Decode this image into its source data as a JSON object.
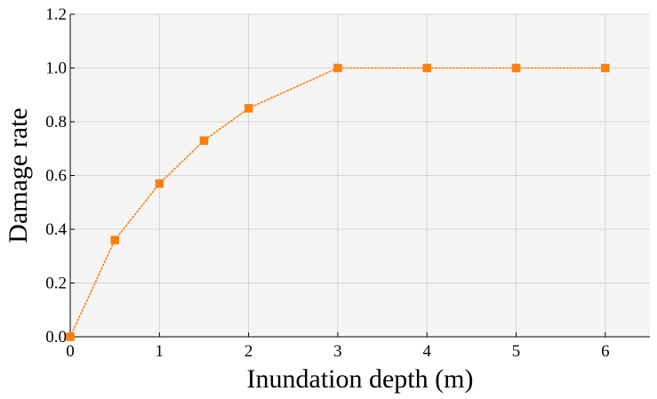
{
  "chart_data": {
    "type": "line",
    "title": "",
    "xlabel": "Inundation depth (m)",
    "ylabel": "Damage rate",
    "xlim": [
      0,
      6.5
    ],
    "ylim": [
      0,
      1.2
    ],
    "x_ticks": [
      0,
      1,
      2,
      3,
      4,
      5,
      6
    ],
    "x_tick_labels": [
      "0",
      "1",
      "2",
      "3",
      "4",
      "5",
      "6"
    ],
    "y_ticks": [
      0,
      0.2,
      0.4,
      0.6,
      0.8,
      1.0,
      1.2
    ],
    "y_tick_labels": [
      "0.0",
      "0.2",
      "0.4",
      "0.6",
      "0.8",
      "1.0",
      "1.2"
    ],
    "grid": true,
    "legend": "none",
    "series": [
      {
        "x": [
          0,
          0.5,
          1,
          1.5,
          2,
          3,
          4,
          5,
          6
        ],
        "y": [
          0,
          0.36,
          0.57,
          0.73,
          0.85,
          1.0,
          1.0,
          1.0,
          1.0
        ],
        "line_style": "dotted",
        "marker": "square",
        "color": "#ff7f0e"
      }
    ],
    "plot_background": "#f5f5f5",
    "grid_color": "#d4d4d4"
  }
}
